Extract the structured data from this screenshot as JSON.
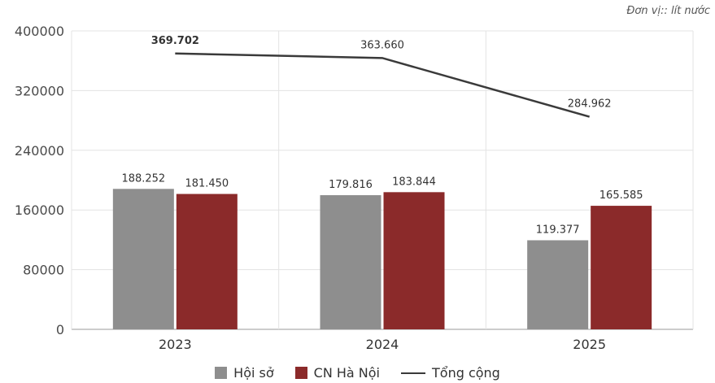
{
  "unit_note": "Đơn vị:: lít nước",
  "chart_data": {
    "type": "bar",
    "categories": [
      "2023",
      "2024",
      "2025"
    ],
    "series": [
      {
        "name": "Hội sở",
        "values": [
          188252,
          179816,
          119377
        ],
        "labels": [
          "188.252",
          "179.816",
          "119.377"
        ],
        "color": "#8e8e8e"
      },
      {
        "name": "CN Hà Nội",
        "values": [
          181450,
          183844,
          165585
        ],
        "labels": [
          "181.450",
          "183.844",
          "165.585"
        ],
        "color": "#8b2a2a"
      }
    ],
    "line_series": {
      "name": "Tổng cộng",
      "values": [
        369702,
        363660,
        284962
      ],
      "labels": [
        "369.702",
        "363.660",
        "284.962"
      ],
      "color": "#3a3a3a"
    },
    "yticks": [
      "0",
      "80000",
      "160000",
      "240000",
      "320000",
      "400000"
    ],
    "ylim": [
      0,
      400000
    ],
    "grid": true,
    "legend_position": "bottom"
  }
}
